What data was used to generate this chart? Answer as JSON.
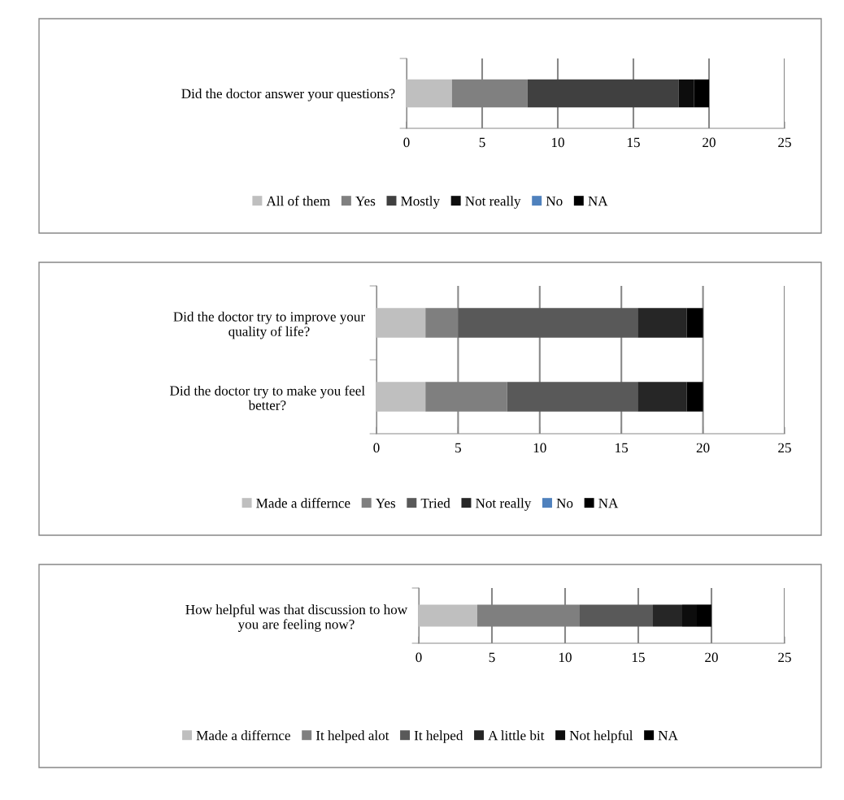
{
  "chart_data": [
    {
      "type": "bar",
      "orientation": "horizontal",
      "stacked": true,
      "categories": [
        "Did the doctor answer your questions?"
      ],
      "xlim": [
        0,
        25
      ],
      "xticks": [
        0,
        5,
        10,
        15,
        20,
        25
      ],
      "grid": "x",
      "legend": "bottom",
      "series": [
        {
          "name": "All of them",
          "color": "#bfbfbf",
          "values": [
            3
          ]
        },
        {
          "name": "Yes",
          "color": "#808080",
          "values": [
            5
          ]
        },
        {
          "name": "Mostly",
          "color": "#404040",
          "values": [
            10
          ]
        },
        {
          "name": "Not really",
          "color": "#0d0d0d",
          "values": [
            1
          ]
        },
        {
          "name": "No",
          "color": "#4f81bd",
          "values": [
            0
          ]
        },
        {
          "name": "NA",
          "color": "#000000",
          "values": [
            1
          ]
        }
      ]
    },
    {
      "type": "bar",
      "orientation": "horizontal",
      "stacked": true,
      "categories": [
        "Did the doctor try to improve your\nquality of life?",
        "Did the doctor try to make you feel\nbetter?"
      ],
      "xlim": [
        0,
        25
      ],
      "xticks": [
        0,
        5,
        10,
        15,
        20,
        25
      ],
      "grid": "x",
      "legend": "bottom",
      "series": [
        {
          "name": "Made a differnce",
          "color": "#bfbfbf",
          "values": [
            3,
            3
          ]
        },
        {
          "name": "Yes",
          "color": "#7f7f7f",
          "values": [
            2,
            5
          ]
        },
        {
          "name": "Tried",
          "color": "#595959",
          "values": [
            11,
            8
          ]
        },
        {
          "name": "Not really",
          "color": "#262626",
          "values": [
            3,
            3
          ]
        },
        {
          "name": "No",
          "color": "#4f81bd",
          "values": [
            0,
            0
          ]
        },
        {
          "name": "NA",
          "color": "#000000",
          "values": [
            1,
            1
          ]
        }
      ]
    },
    {
      "type": "bar",
      "orientation": "horizontal",
      "stacked": true,
      "categories": [
        "How helpful was that discussion to how\nyou are feeling now?"
      ],
      "xlim": [
        0,
        25
      ],
      "xticks": [
        0,
        5,
        10,
        15,
        20,
        25
      ],
      "grid": "x",
      "legend": "bottom",
      "series": [
        {
          "name": "Made a differnce",
          "color": "#bfbfbf",
          "values": [
            4
          ]
        },
        {
          "name": "It helped alot",
          "color": "#7f7f7f",
          "values": [
            7
          ]
        },
        {
          "name": "It helped",
          "color": "#595959",
          "values": [
            5
          ]
        },
        {
          "name": "A little bit",
          "color": "#262626",
          "values": [
            2
          ]
        },
        {
          "name": "Not helpful",
          "color": "#0d0d0d",
          "values": [
            1
          ]
        },
        {
          "name": "NA",
          "color": "#000000",
          "values": [
            1
          ]
        }
      ]
    }
  ]
}
